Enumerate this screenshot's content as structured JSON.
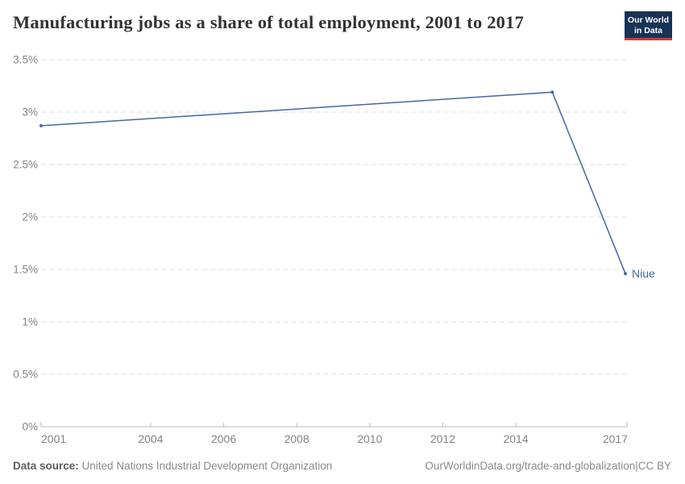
{
  "header": {
    "title": "Manufacturing jobs as a share of total employment, 2001 to 2017",
    "logo": {
      "line1": "Our World",
      "line2": "in Data"
    }
  },
  "chart_data": {
    "type": "line",
    "title": "Manufacturing jobs as a share of total employment, 2001 to 2017",
    "xlabel": "",
    "ylabel": "",
    "xlim": [
      2001,
      2017
    ],
    "ylim": [
      0,
      3.5
    ],
    "grid": "horizontal-dashed",
    "legend_position": "end-of-line-label",
    "xticks": [
      2001,
      2004,
      2006,
      2008,
      2010,
      2012,
      2014,
      2017
    ],
    "xtick_labels": [
      "2001",
      "2004",
      "2006",
      "2008",
      "2010",
      "2012",
      "2014",
      "2017"
    ],
    "yticks": [
      0,
      0.5,
      1,
      1.5,
      2,
      2.5,
      3,
      3.5
    ],
    "ytick_labels": [
      "0%",
      "0.5%",
      "1%",
      "1.5%",
      "2%",
      "2.5%",
      "3%",
      "3.5%"
    ],
    "series": [
      {
        "name": "Niue",
        "color": "#4666a4",
        "points": [
          {
            "year": 2001,
            "value": 2.87
          },
          {
            "year": 2015,
            "value": 3.19
          },
          {
            "year": 2017,
            "value": 1.46
          }
        ]
      }
    ]
  },
  "footer": {
    "source_label": "Data source:",
    "source": "United Nations Industrial Development Organization",
    "link": "OurWorldinData.org/trade-and-globalization",
    "separator": "|",
    "license": "CC BY"
  },
  "colors": {
    "line": "#4666a4",
    "gridline": "#dcdcdc",
    "axis": "#bbbbbb",
    "tick_label": "#838383",
    "title": "#333333",
    "footer_text": "#8a8a8a",
    "footer_label": "#5c5c5c",
    "logo_bg": "#183256",
    "logo_accent": "#d8382f"
  }
}
